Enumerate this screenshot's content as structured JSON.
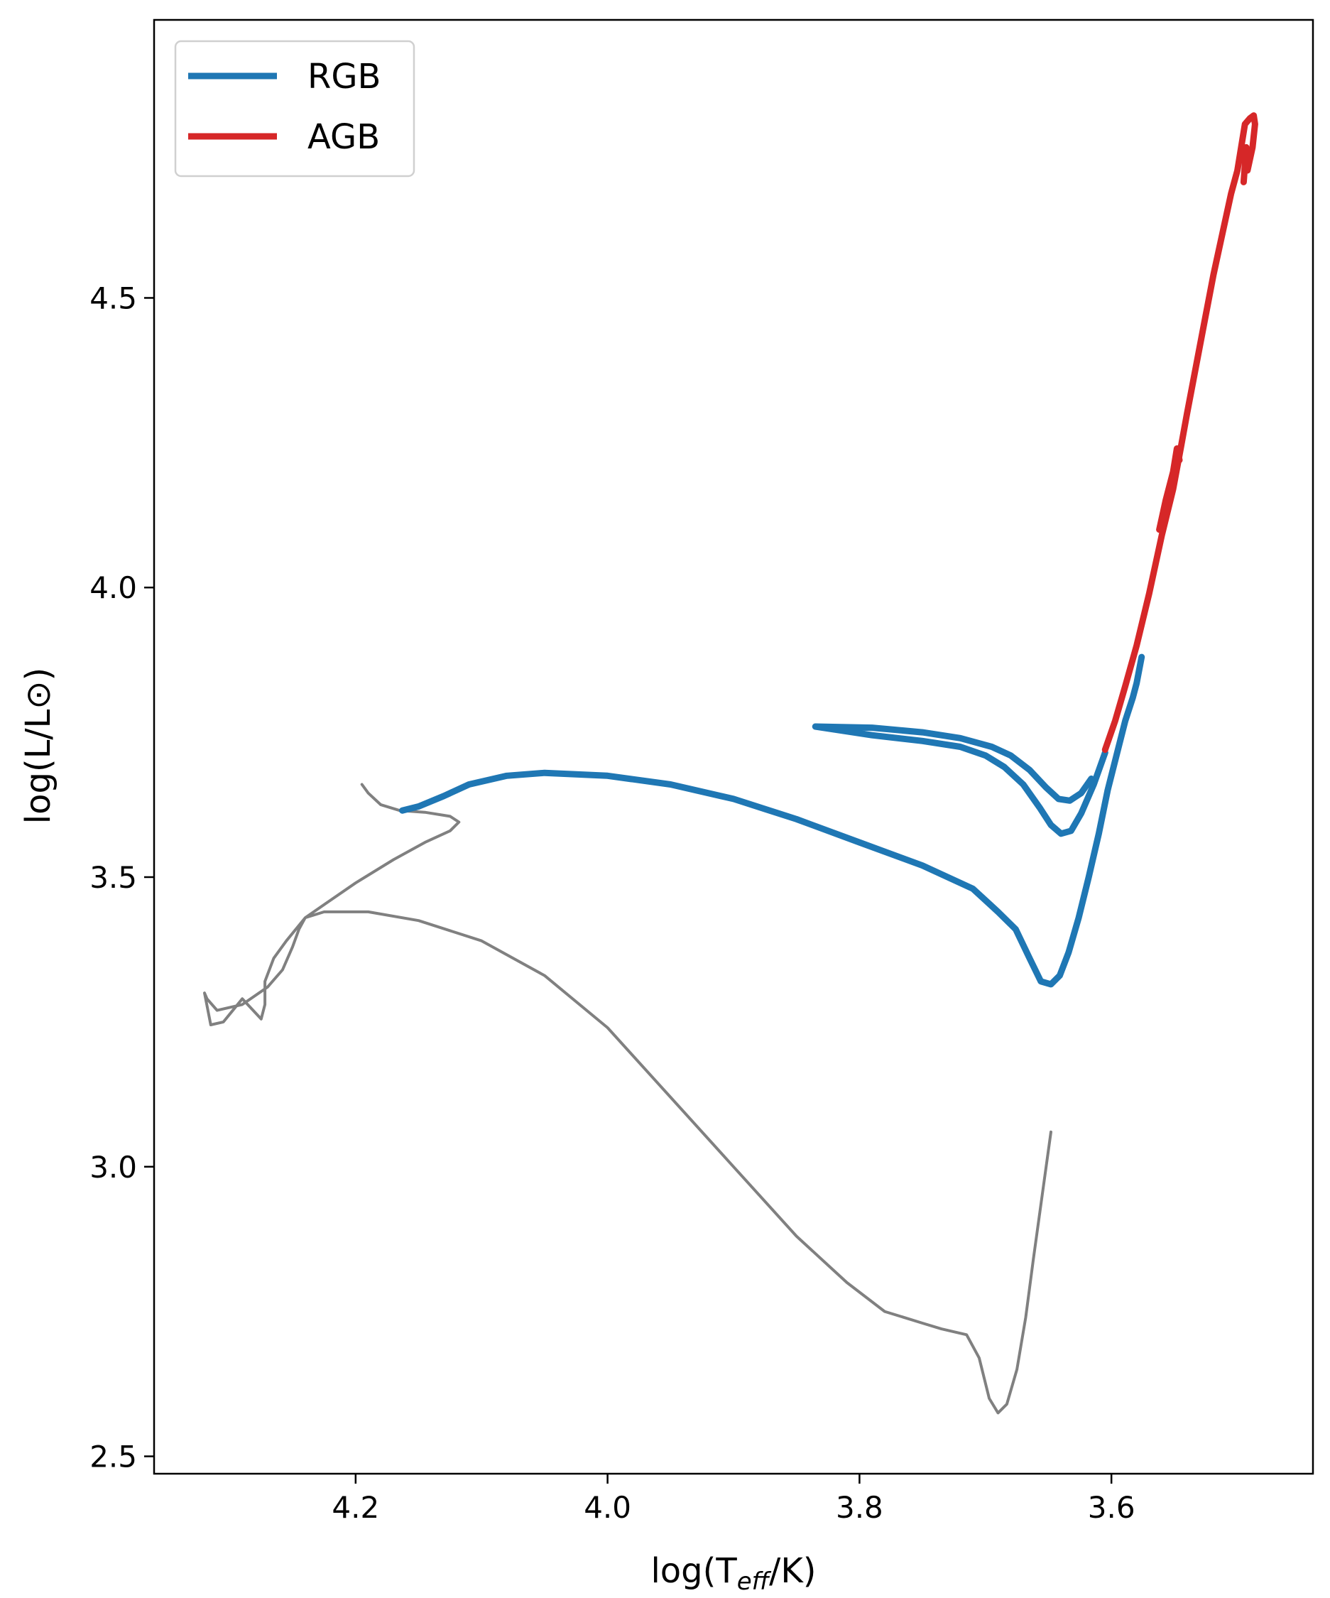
{
  "chart_data": {
    "type": "line",
    "title": "",
    "xlabel": "log(T_eff/K)",
    "xlabel_main": "log(T",
    "xlabel_sub": "eff",
    "xlabel_end": "/K)",
    "ylabel": "log(L/L⊙)",
    "xlim": [
      4.36,
      3.44
    ],
    "ylim": [
      2.47,
      4.98
    ],
    "x_inverted": true,
    "xticks": [
      4.2,
      4.0,
      3.8,
      3.6
    ],
    "xtick_labels": [
      "4.2",
      "4.0",
      "3.8",
      "3.6"
    ],
    "yticks": [
      2.5,
      3.0,
      3.5,
      4.0,
      4.5
    ],
    "ytick_labels": [
      "2.5",
      "3.0",
      "3.5",
      "4.0",
      "4.5"
    ],
    "grid": false,
    "legend_position": "top-left",
    "colors": {
      "rgb": "#1f77b4",
      "agb": "#d62728",
      "track": "#808080"
    },
    "series": [
      {
        "name": "",
        "role": "track",
        "color": "#808080",
        "points": [
          [
            3.648,
            3.06
          ],
          [
            3.655,
            2.95
          ],
          [
            3.662,
            2.84
          ],
          [
            3.668,
            2.74
          ],
          [
            3.675,
            2.65
          ],
          [
            3.683,
            2.59
          ],
          [
            3.69,
            2.575
          ],
          [
            3.697,
            2.6
          ],
          [
            3.705,
            2.67
          ],
          [
            3.715,
            2.71
          ],
          [
            3.735,
            2.72
          ],
          [
            3.75,
            2.73
          ],
          [
            3.78,
            2.75
          ],
          [
            3.81,
            2.8
          ],
          [
            3.85,
            2.88
          ],
          [
            3.9,
            3.0
          ],
          [
            3.95,
            3.12
          ],
          [
            4.0,
            3.24
          ],
          [
            4.05,
            3.33
          ],
          [
            4.1,
            3.39
          ],
          [
            4.15,
            3.425
          ],
          [
            4.19,
            3.44
          ],
          [
            4.225,
            3.44
          ],
          [
            4.24,
            3.43
          ],
          [
            4.245,
            3.41
          ],
          [
            4.25,
            3.38
          ],
          [
            4.258,
            3.34
          ],
          [
            4.27,
            3.31
          ],
          [
            4.29,
            3.28
          ],
          [
            4.31,
            3.27
          ],
          [
            4.318,
            3.29
          ],
          [
            4.32,
            3.3
          ],
          [
            4.315,
            3.245
          ],
          [
            4.305,
            3.25
          ],
          [
            4.29,
            3.29
          ],
          [
            4.275,
            3.255
          ],
          [
            4.272,
            3.28
          ],
          [
            4.272,
            3.32
          ],
          [
            4.265,
            3.36
          ],
          [
            4.255,
            3.39
          ],
          [
            4.24,
            3.43
          ],
          [
            4.22,
            3.46
          ],
          [
            4.2,
            3.49
          ],
          [
            4.17,
            3.53
          ],
          [
            4.145,
            3.56
          ],
          [
            4.125,
            3.58
          ],
          [
            4.118,
            3.595
          ],
          [
            4.125,
            3.605
          ],
          [
            4.145,
            3.612
          ],
          [
            4.165,
            3.615
          ],
          [
            4.18,
            3.625
          ],
          [
            4.19,
            3.645
          ],
          [
            4.195,
            3.66
          ]
        ]
      },
      {
        "name": "RGB",
        "role": "rgb",
        "color": "#1f77b4",
        "points": [
          [
            4.163,
            3.615
          ],
          [
            4.15,
            3.622
          ],
          [
            4.13,
            3.64
          ],
          [
            4.11,
            3.66
          ],
          [
            4.08,
            3.675
          ],
          [
            4.05,
            3.68
          ],
          [
            4.0,
            3.675
          ],
          [
            3.95,
            3.66
          ],
          [
            3.9,
            3.635
          ],
          [
            3.85,
            3.6
          ],
          [
            3.8,
            3.56
          ],
          [
            3.75,
            3.52
          ],
          [
            3.71,
            3.48
          ],
          [
            3.69,
            3.44
          ],
          [
            3.676,
            3.41
          ],
          [
            3.665,
            3.36
          ],
          [
            3.656,
            3.32
          ],
          [
            3.648,
            3.315
          ],
          [
            3.641,
            3.33
          ],
          [
            3.634,
            3.37
          ],
          [
            3.626,
            3.43
          ],
          [
            3.618,
            3.5
          ],
          [
            3.61,
            3.575
          ],
          [
            3.603,
            3.65
          ],
          [
            3.596,
            3.71
          ],
          [
            3.589,
            3.77
          ],
          [
            3.583,
            3.81
          ],
          [
            3.58,
            3.835
          ],
          [
            3.576,
            3.88
          ]
        ]
      },
      {
        "name": "",
        "role": "rgb",
        "color": "#1f77b4",
        "points": [
          [
            3.835,
            3.76
          ],
          [
            3.79,
            3.745
          ],
          [
            3.75,
            3.735
          ],
          [
            3.72,
            3.725
          ],
          [
            3.7,
            3.71
          ],
          [
            3.685,
            3.69
          ],
          [
            3.67,
            3.66
          ],
          [
            3.657,
            3.62
          ],
          [
            3.648,
            3.59
          ],
          [
            3.64,
            3.575
          ],
          [
            3.632,
            3.58
          ],
          [
            3.624,
            3.61
          ],
          [
            3.614,
            3.66
          ],
          [
            3.605,
            3.715
          ]
        ]
      },
      {
        "name": "",
        "role": "rgb",
        "color": "#1f77b4",
        "points": [
          [
            3.835,
            3.76
          ],
          [
            3.79,
            3.758
          ],
          [
            3.75,
            3.75
          ],
          [
            3.72,
            3.74
          ],
          [
            3.695,
            3.725
          ],
          [
            3.68,
            3.71
          ],
          [
            3.665,
            3.685
          ],
          [
            3.652,
            3.655
          ],
          [
            3.642,
            3.635
          ],
          [
            3.633,
            3.632
          ],
          [
            3.624,
            3.645
          ],
          [
            3.616,
            3.67
          ]
        ]
      },
      {
        "name": "AGB",
        "role": "agb",
        "color": "#d62728",
        "points": [
          [
            3.605,
            3.72
          ],
          [
            3.597,
            3.77
          ],
          [
            3.589,
            3.83
          ],
          [
            3.58,
            3.9
          ],
          [
            3.57,
            3.99
          ],
          [
            3.56,
            4.09
          ],
          [
            3.551,
            4.17
          ],
          [
            3.545,
            4.24
          ],
          [
            3.54,
            4.3
          ],
          [
            3.533,
            4.38
          ],
          [
            3.526,
            4.46
          ],
          [
            3.519,
            4.54
          ],
          [
            3.512,
            4.61
          ],
          [
            3.505,
            4.68
          ],
          [
            3.5,
            4.72
          ],
          [
            3.497,
            4.76
          ],
          [
            3.494,
            4.8
          ],
          [
            3.49,
            4.81
          ],
          [
            3.487,
            4.815
          ],
          [
            3.486,
            4.8
          ],
          [
            3.488,
            4.76
          ],
          [
            3.492,
            4.72
          ],
          [
            3.493,
            4.76
          ],
          [
            3.495,
            4.7
          ]
        ]
      },
      {
        "name": "",
        "role": "agb",
        "color": "#d62728",
        "points": [
          [
            3.562,
            4.1
          ],
          [
            3.557,
            4.15
          ],
          [
            3.551,
            4.2
          ],
          [
            3.548,
            4.24
          ],
          [
            3.546,
            4.22
          ]
        ]
      }
    ],
    "legend": [
      {
        "label": "RGB",
        "color": "#1f77b4"
      },
      {
        "label": "AGB",
        "color": "#d62728"
      }
    ]
  }
}
